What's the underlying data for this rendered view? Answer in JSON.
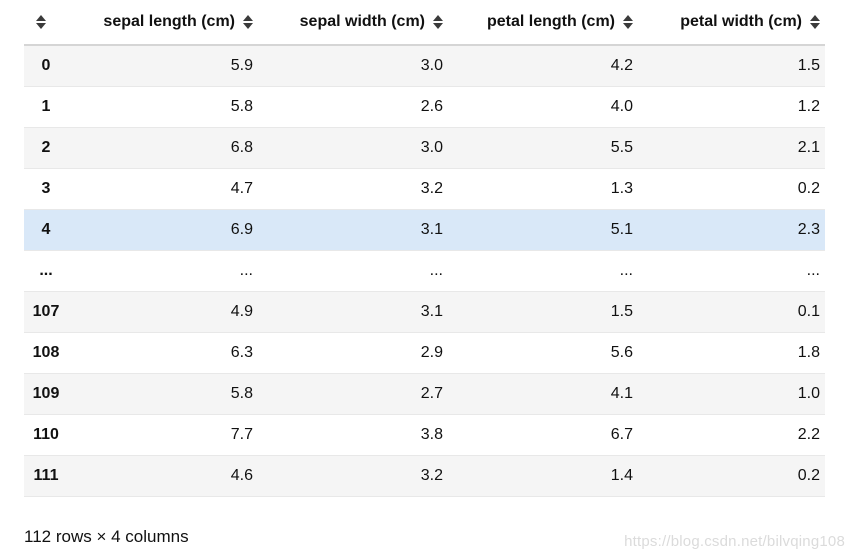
{
  "table": {
    "columns": [
      "sepal length (cm)",
      "sepal width (cm)",
      "petal length (cm)",
      "petal width (cm)"
    ],
    "rows": [
      {
        "index": "0",
        "values": [
          "5.9",
          "3.0",
          "4.2",
          "1.5"
        ]
      },
      {
        "index": "1",
        "values": [
          "5.8",
          "2.6",
          "4.0",
          "1.2"
        ]
      },
      {
        "index": "2",
        "values": [
          "6.8",
          "3.0",
          "5.5",
          "2.1"
        ]
      },
      {
        "index": "3",
        "values": [
          "4.7",
          "3.2",
          "1.3",
          "0.2"
        ]
      },
      {
        "index": "4",
        "values": [
          "6.9",
          "3.1",
          "5.1",
          "2.3"
        ]
      },
      {
        "index": "...",
        "values": [
          "...",
          "...",
          "...",
          "..."
        ]
      },
      {
        "index": "107",
        "values": [
          "4.9",
          "3.1",
          "1.5",
          "0.1"
        ]
      },
      {
        "index": "108",
        "values": [
          "6.3",
          "2.9",
          "5.6",
          "1.8"
        ]
      },
      {
        "index": "109",
        "values": [
          "5.8",
          "2.7",
          "4.1",
          "1.0"
        ]
      },
      {
        "index": "110",
        "values": [
          "7.7",
          "3.8",
          "6.7",
          "2.2"
        ]
      },
      {
        "index": "111",
        "values": [
          "4.6",
          "3.2",
          "1.4",
          "0.2"
        ]
      }
    ],
    "highlighted_row": 4
  },
  "footer": {
    "summary": "112 rows × 4 columns"
  },
  "watermark": {
    "text": "https://blog.csdn.net/bilvqing108"
  },
  "colors": {
    "stripe": "#f5f5f5",
    "highlight": "#d9e8f8",
    "header_border": "#d5d5d5",
    "row_border": "#e8e8e8",
    "watermark_text": "#dbdbdb"
  }
}
